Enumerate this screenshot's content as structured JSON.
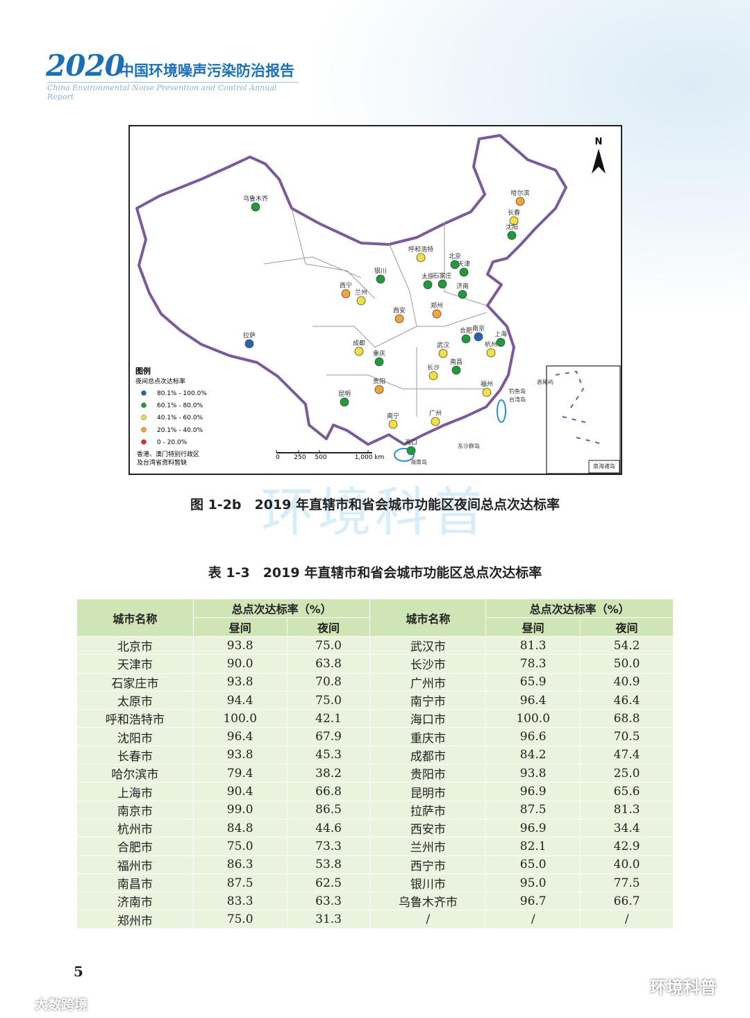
{
  "header": {
    "year": "2020",
    "title": "中国环境噪声污染防治报告",
    "subtitle": "China Environmental Noise Prevention and Control Annual Report"
  },
  "map": {
    "north": "N",
    "cities": [
      {
        "name": "乌鲁木齐",
        "color": "#1f9a3c"
      },
      {
        "name": "哈尔滨",
        "color": "#f2a43a"
      },
      {
        "name": "长春",
        "color": "#f0e040"
      },
      {
        "name": "沈阳",
        "color": "#1f9a3c"
      },
      {
        "name": "呼和浩特",
        "color": "#f0e040"
      },
      {
        "name": "北京",
        "color": "#1f9a3c"
      },
      {
        "name": "天津",
        "color": "#1f9a3c"
      },
      {
        "name": "石家庄",
        "color": "#1f9a3c"
      },
      {
        "name": "太原",
        "color": "#1f9a3c"
      },
      {
        "name": "济南",
        "color": "#1f9a3c"
      },
      {
        "name": "银川",
        "color": "#1f9a3c"
      },
      {
        "name": "西宁",
        "color": "#f2a43a"
      },
      {
        "name": "兰州",
        "color": "#f0e040"
      },
      {
        "name": "西安",
        "color": "#f2a43a"
      },
      {
        "name": "郑州",
        "color": "#f2a43a"
      },
      {
        "name": "拉萨",
        "color": "#2a62b4"
      },
      {
        "name": "成都",
        "color": "#f0e040"
      },
      {
        "name": "重庆",
        "color": "#1f9a3c"
      },
      {
        "name": "合肥",
        "color": "#1f9a3c"
      },
      {
        "name": "南京",
        "color": "#2a62b4"
      },
      {
        "name": "上海",
        "color": "#1f9a3c"
      },
      {
        "name": "杭州",
        "color": "#f0e040"
      },
      {
        "name": "武汉",
        "color": "#f0e040"
      },
      {
        "name": "长沙",
        "color": "#f0e040"
      },
      {
        "name": "南昌",
        "color": "#1f9a3c"
      },
      {
        "name": "贵阳",
        "color": "#f2a43a"
      },
      {
        "name": "福州",
        "color": "#f0e040"
      },
      {
        "name": "昆明",
        "color": "#1f9a3c"
      },
      {
        "name": "南宁",
        "color": "#f0e040"
      },
      {
        "name": "广州",
        "color": "#f0e040"
      },
      {
        "name": "海口",
        "color": "#1f9a3c"
      }
    ],
    "places": [
      "赤尾屿",
      "钓鱼岛",
      "台湾岛",
      "东沙群岛",
      "海南岛",
      "南海诸岛"
    ],
    "legend": {
      "title": "图例",
      "subtitle": "夜间总点次达标率",
      "items": [
        {
          "label": "80.1% - 100.0%",
          "color": "#2a62b4"
        },
        {
          "label": "60.1% - 80.0%",
          "color": "#1f9a3c"
        },
        {
          "label": "40.1% - 60.0%",
          "color": "#f0e040"
        },
        {
          "label": "20.1% - 40.0%",
          "color": "#f2a43a"
        },
        {
          "label": "0 - 20.0%",
          "color": "#d9302c"
        }
      ],
      "note": [
        "香港、澳门特别行政区",
        "及台湾省资料暂缺"
      ]
    },
    "scale": [
      "0",
      "250",
      "500",
      "1,000 km"
    ]
  },
  "figure_caption": "图 1-2b　2019 年直辖市和省会城市功能区夜间总点次达标率",
  "table": {
    "caption": "表 1-3　2019 年直辖市和省会城市功能区总点次达标率",
    "header": {
      "city": "城市名称",
      "rate": "总点次达标率（%）",
      "day": "昼间",
      "night": "夜间"
    },
    "rows": [
      [
        "北京市",
        "93.8",
        "75.0",
        "武汉市",
        "81.3",
        "54.2"
      ],
      [
        "天津市",
        "90.0",
        "63.8",
        "长沙市",
        "78.3",
        "50.0"
      ],
      [
        "石家庄市",
        "93.8",
        "70.8",
        "广州市",
        "65.9",
        "40.9"
      ],
      [
        "太原市",
        "94.4",
        "75.0",
        "南宁市",
        "96.4",
        "46.4"
      ],
      [
        "呼和浩特市",
        "100.0",
        "42.1",
        "海口市",
        "100.0",
        "68.8"
      ],
      [
        "沈阳市",
        "96.4",
        "67.9",
        "重庆市",
        "96.6",
        "70.5"
      ],
      [
        "长春市",
        "93.8",
        "45.3",
        "成都市",
        "84.2",
        "47.4"
      ],
      [
        "哈尔滨市",
        "79.4",
        "38.2",
        "贵阳市",
        "93.8",
        "25.0"
      ],
      [
        "上海市",
        "90.4",
        "66.8",
        "昆明市",
        "96.9",
        "65.6"
      ],
      [
        "南京市",
        "99.0",
        "86.5",
        "拉萨市",
        "87.5",
        "81.3"
      ],
      [
        "杭州市",
        "84.8",
        "44.6",
        "西安市",
        "96.9",
        "34.4"
      ],
      [
        "合肥市",
        "75.0",
        "73.3",
        "兰州市",
        "82.1",
        "42.9"
      ],
      [
        "福州市",
        "86.3",
        "53.8",
        "西宁市",
        "65.0",
        "40.0"
      ],
      [
        "南昌市",
        "87.5",
        "62.5",
        "银川市",
        "95.0",
        "77.5"
      ],
      [
        "济南市",
        "83.3",
        "63.3",
        "乌鲁木齐市",
        "96.7",
        "66.7"
      ],
      [
        "郑州市",
        "75.0",
        "31.3",
        "/",
        "/",
        "/"
      ]
    ]
  },
  "page_number": "5",
  "watermark": "环境科普",
  "footer": {
    "left": "大数跨境",
    "right": "环境科普"
  }
}
